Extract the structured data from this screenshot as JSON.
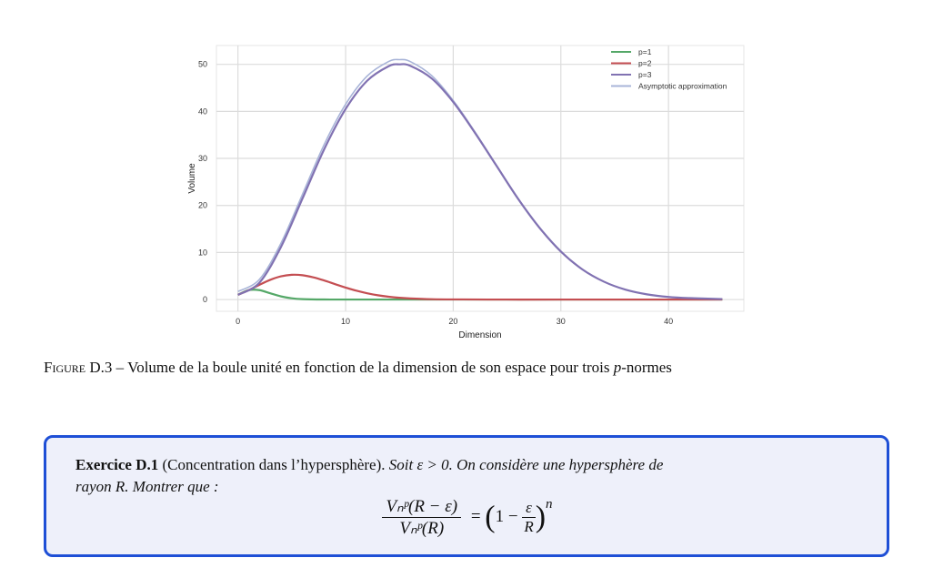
{
  "chart_data": {
    "type": "line",
    "xlabel": "Dimension",
    "ylabel": "Volume",
    "xlim": [
      -2,
      47
    ],
    "ylim": [
      -2.5,
      54
    ],
    "xticks": [
      0,
      10,
      20,
      30,
      40
    ],
    "yticks": [
      0,
      10,
      20,
      30,
      40,
      50
    ],
    "grid": true,
    "legend_position": "top-right",
    "series": [
      {
        "name": "p=1",
        "color": "#55a868",
        "x": [
          0,
          1,
          2,
          3,
          4,
          5,
          6,
          8,
          10,
          15,
          20,
          30,
          45
        ],
        "y": [
          1,
          2,
          2,
          1.33,
          0.67,
          0.27,
          0.09,
          0.01,
          0,
          0,
          0,
          0,
          0
        ]
      },
      {
        "name": "p=2",
        "color": "#c44e52",
        "x": [
          0,
          1,
          2,
          3,
          4,
          5,
          6,
          7,
          8,
          9,
          10,
          11,
          12,
          13,
          14,
          15,
          16,
          18,
          20,
          25,
          30,
          45
        ],
        "y": [
          1,
          2,
          3.14,
          4.19,
          4.93,
          5.26,
          5.17,
          4.72,
          4.06,
          3.3,
          2.55,
          1.88,
          1.34,
          0.91,
          0.6,
          0.38,
          0.24,
          0.08,
          0.03,
          0,
          0,
          0
        ]
      },
      {
        "name": "p=3",
        "color": "#8172b2",
        "x": [
          0,
          2,
          4,
          6,
          8,
          10,
          12,
          14,
          15,
          16,
          18,
          20,
          22,
          24,
          26,
          28,
          30,
          32,
          34,
          36,
          38,
          40,
          42,
          45
        ],
        "y": [
          1,
          3.6,
          11.2,
          21.5,
          31.9,
          40.5,
          46.5,
          49.6,
          50,
          49.7,
          47,
          42,
          35.5,
          28.5,
          21.5,
          15.3,
          10.2,
          6.4,
          3.8,
          2.1,
          1.1,
          0.55,
          0.3,
          0.1
        ]
      },
      {
        "name": "Asymptotic approximation",
        "color": "#a8b4d8",
        "x": [
          0,
          2,
          4,
          6,
          8,
          10,
          12,
          14,
          15,
          16,
          18,
          20,
          22,
          24,
          26,
          28,
          30,
          32,
          34,
          36,
          38,
          40,
          42,
          45
        ],
        "y": [
          1.7,
          4.3,
          12,
          22.4,
          32.9,
          41.5,
          47.5,
          50.6,
          51,
          50.6,
          47.6,
          42.3,
          35.7,
          28.6,
          21.6,
          15.4,
          10.3,
          6.4,
          3.8,
          2.1,
          1.1,
          0.55,
          0.3,
          0.1
        ]
      }
    ]
  },
  "caption": {
    "label": "Figure D.3",
    "dash": " – ",
    "text_before": "Volume de la boule unité en fonction de la dimension de son espace pour trois ",
    "p_symbol": "p",
    "text_after": "-normes"
  },
  "exercise": {
    "title": "Exercice D.1",
    "subtitle": "(Concentration dans l’hypersphère).",
    "statement_line1": "Soit ε > 0. On considère une hypersphère de",
    "statement_line2": "rayon R. Montrer que :",
    "formula": {
      "numerator": "Vₙᵖ(R − ε)",
      "denominator": "Vₙᵖ(R)",
      "equals": "=",
      "one_minus": "1 −",
      "inner_num": "ε",
      "inner_den": "R",
      "exponent": "n"
    }
  }
}
